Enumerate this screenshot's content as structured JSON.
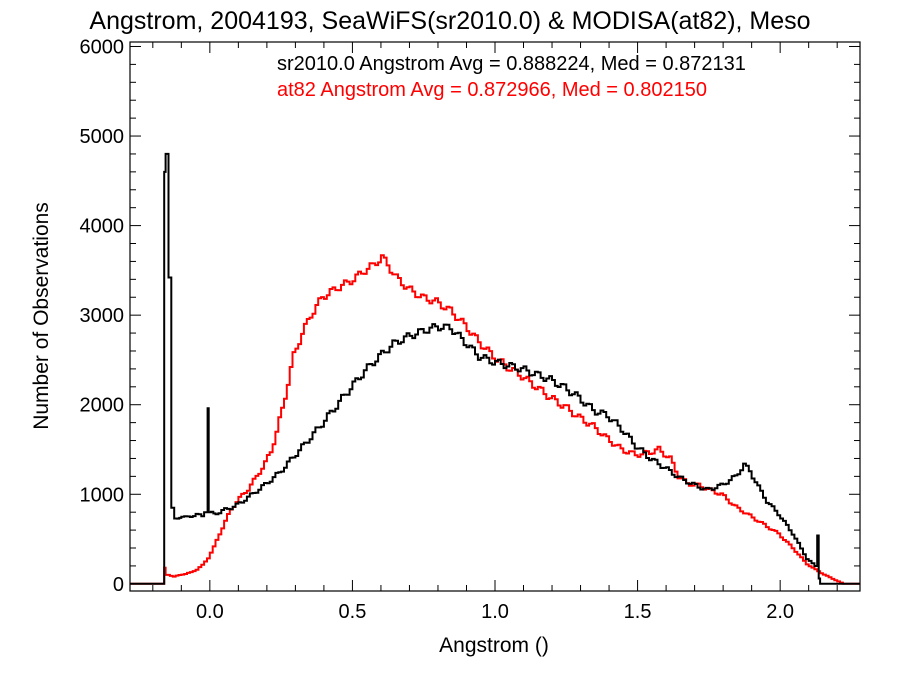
{
  "chart_data": {
    "type": "line",
    "step": true,
    "title": "Angstrom, 2004193, SeaWiFS(sr2010.0) & MODISA(at82), Meso",
    "xlabel": "Angstrom ()",
    "ylabel": "Number of Observations",
    "xlim": [
      -0.28,
      2.28
    ],
    "ylim": [
      -80,
      6050
    ],
    "x_ticks": [
      0.0,
      0.5,
      1.0,
      1.5,
      2.0
    ],
    "x_tick_labels": [
      "0.0",
      "0.5",
      "1.0",
      "1.5",
      "2.0"
    ],
    "y_ticks": [
      0,
      1000,
      2000,
      3000,
      4000,
      5000,
      6000
    ],
    "y_tick_labels": [
      "0",
      "1000",
      "2000",
      "3000",
      "4000",
      "5000",
      "6000"
    ],
    "grid": false,
    "legend_placement": "top-right",
    "series": [
      {
        "name": "sr2010.0",
        "legend_text": "sr2010.0 Angstrom Avg = 0.888224, Med = 0.872131",
        "color": "#000000",
        "points": [
          [
            -0.28,
            0
          ],
          [
            -0.16,
            0
          ],
          [
            -0.155,
            4600
          ],
          [
            -0.145,
            4800
          ],
          [
            -0.135,
            3420
          ],
          [
            -0.125,
            850
          ],
          [
            -0.115,
            730
          ],
          [
            -0.1,
            750
          ],
          [
            -0.08,
            740
          ],
          [
            -0.06,
            760
          ],
          [
            -0.04,
            770
          ],
          [
            -0.02,
            760
          ],
          [
            -0.008,
            800
          ],
          [
            -0.004,
            1960
          ],
          [
            0.004,
            800
          ],
          [
            0.02,
            780
          ],
          [
            0.04,
            800
          ],
          [
            0.06,
            830
          ],
          [
            0.08,
            850
          ],
          [
            0.1,
            880
          ],
          [
            0.12,
            920
          ],
          [
            0.15,
            990
          ],
          [
            0.18,
            1060
          ],
          [
            0.2,
            1110
          ],
          [
            0.25,
            1240
          ],
          [
            0.3,
            1420
          ],
          [
            0.35,
            1600
          ],
          [
            0.4,
            1790
          ],
          [
            0.45,
            1990
          ],
          [
            0.5,
            2190
          ],
          [
            0.55,
            2380
          ],
          [
            0.6,
            2540
          ],
          [
            0.65,
            2680
          ],
          [
            0.7,
            2760
          ],
          [
            0.75,
            2820
          ],
          [
            0.8,
            2870
          ],
          [
            0.85,
            2860
          ],
          [
            0.9,
            2700
          ],
          [
            0.95,
            2540
          ],
          [
            1.0,
            2480
          ],
          [
            1.05,
            2440
          ],
          [
            1.1,
            2400
          ],
          [
            1.15,
            2340
          ],
          [
            1.2,
            2280
          ],
          [
            1.25,
            2190
          ],
          [
            1.3,
            2080
          ],
          [
            1.35,
            1940
          ],
          [
            1.4,
            1880
          ],
          [
            1.45,
            1730
          ],
          [
            1.5,
            1540
          ],
          [
            1.55,
            1400
          ],
          [
            1.6,
            1300
          ],
          [
            1.65,
            1190
          ],
          [
            1.7,
            1110
          ],
          [
            1.75,
            1050
          ],
          [
            1.8,
            1100
          ],
          [
            1.85,
            1200
          ],
          [
            1.88,
            1330
          ],
          [
            1.9,
            1260
          ],
          [
            1.93,
            1080
          ],
          [
            1.96,
            920
          ],
          [
            2.0,
            780
          ],
          [
            2.05,
            560
          ],
          [
            2.1,
            280
          ],
          [
            2.13,
            200
          ],
          [
            2.135,
            540
          ],
          [
            2.14,
            60
          ],
          [
            2.145,
            0
          ],
          [
            2.28,
            0
          ]
        ]
      },
      {
        "name": "at82",
        "legend_text": "at82 Angstrom Avg = 0.872966, Med = 0.802150",
        "color": "#ff0000",
        "points": [
          [
            -0.28,
            0
          ],
          [
            -0.16,
            0
          ],
          [
            -0.155,
            180
          ],
          [
            -0.14,
            100
          ],
          [
            -0.12,
            80
          ],
          [
            -0.1,
            100
          ],
          [
            -0.08,
            110
          ],
          [
            -0.06,
            130
          ],
          [
            -0.04,
            160
          ],
          [
            -0.02,
            210
          ],
          [
            0.0,
            290
          ],
          [
            0.02,
            410
          ],
          [
            0.04,
            560
          ],
          [
            0.06,
            700
          ],
          [
            0.08,
            830
          ],
          [
            0.1,
            920
          ],
          [
            0.12,
            990
          ],
          [
            0.14,
            1060
          ],
          [
            0.16,
            1150
          ],
          [
            0.18,
            1250
          ],
          [
            0.2,
            1350
          ],
          [
            0.22,
            1480
          ],
          [
            0.24,
            1700
          ],
          [
            0.26,
            1950
          ],
          [
            0.28,
            2250
          ],
          [
            0.3,
            2550
          ],
          [
            0.33,
            2800
          ],
          [
            0.36,
            3000
          ],
          [
            0.4,
            3200
          ],
          [
            0.45,
            3300
          ],
          [
            0.5,
            3380
          ],
          [
            0.55,
            3500
          ],
          [
            0.58,
            3560
          ],
          [
            0.61,
            3650
          ],
          [
            0.63,
            3560
          ],
          [
            0.66,
            3420
          ],
          [
            0.7,
            3300
          ],
          [
            0.75,
            3200
          ],
          [
            0.8,
            3150
          ],
          [
            0.85,
            3050
          ],
          [
            0.9,
            2890
          ],
          [
            0.95,
            2700
          ],
          [
            1.0,
            2540
          ],
          [
            1.05,
            2420
          ],
          [
            1.1,
            2320
          ],
          [
            1.15,
            2200
          ],
          [
            1.2,
            2080
          ],
          [
            1.25,
            1980
          ],
          [
            1.3,
            1860
          ],
          [
            1.35,
            1760
          ],
          [
            1.4,
            1620
          ],
          [
            1.45,
            1500
          ],
          [
            1.5,
            1440
          ],
          [
            1.55,
            1470
          ],
          [
            1.58,
            1500
          ],
          [
            1.62,
            1400
          ],
          [
            1.65,
            1200
          ],
          [
            1.68,
            1120
          ],
          [
            1.72,
            1100
          ],
          [
            1.75,
            1060
          ],
          [
            1.8,
            1000
          ],
          [
            1.85,
            860
          ],
          [
            1.9,
            760
          ],
          [
            1.95,
            660
          ],
          [
            2.0,
            560
          ],
          [
            2.05,
            400
          ],
          [
            2.1,
            220
          ],
          [
            2.15,
            120
          ],
          [
            2.2,
            40
          ],
          [
            2.23,
            0
          ],
          [
            2.28,
            0
          ]
        ]
      }
    ]
  }
}
